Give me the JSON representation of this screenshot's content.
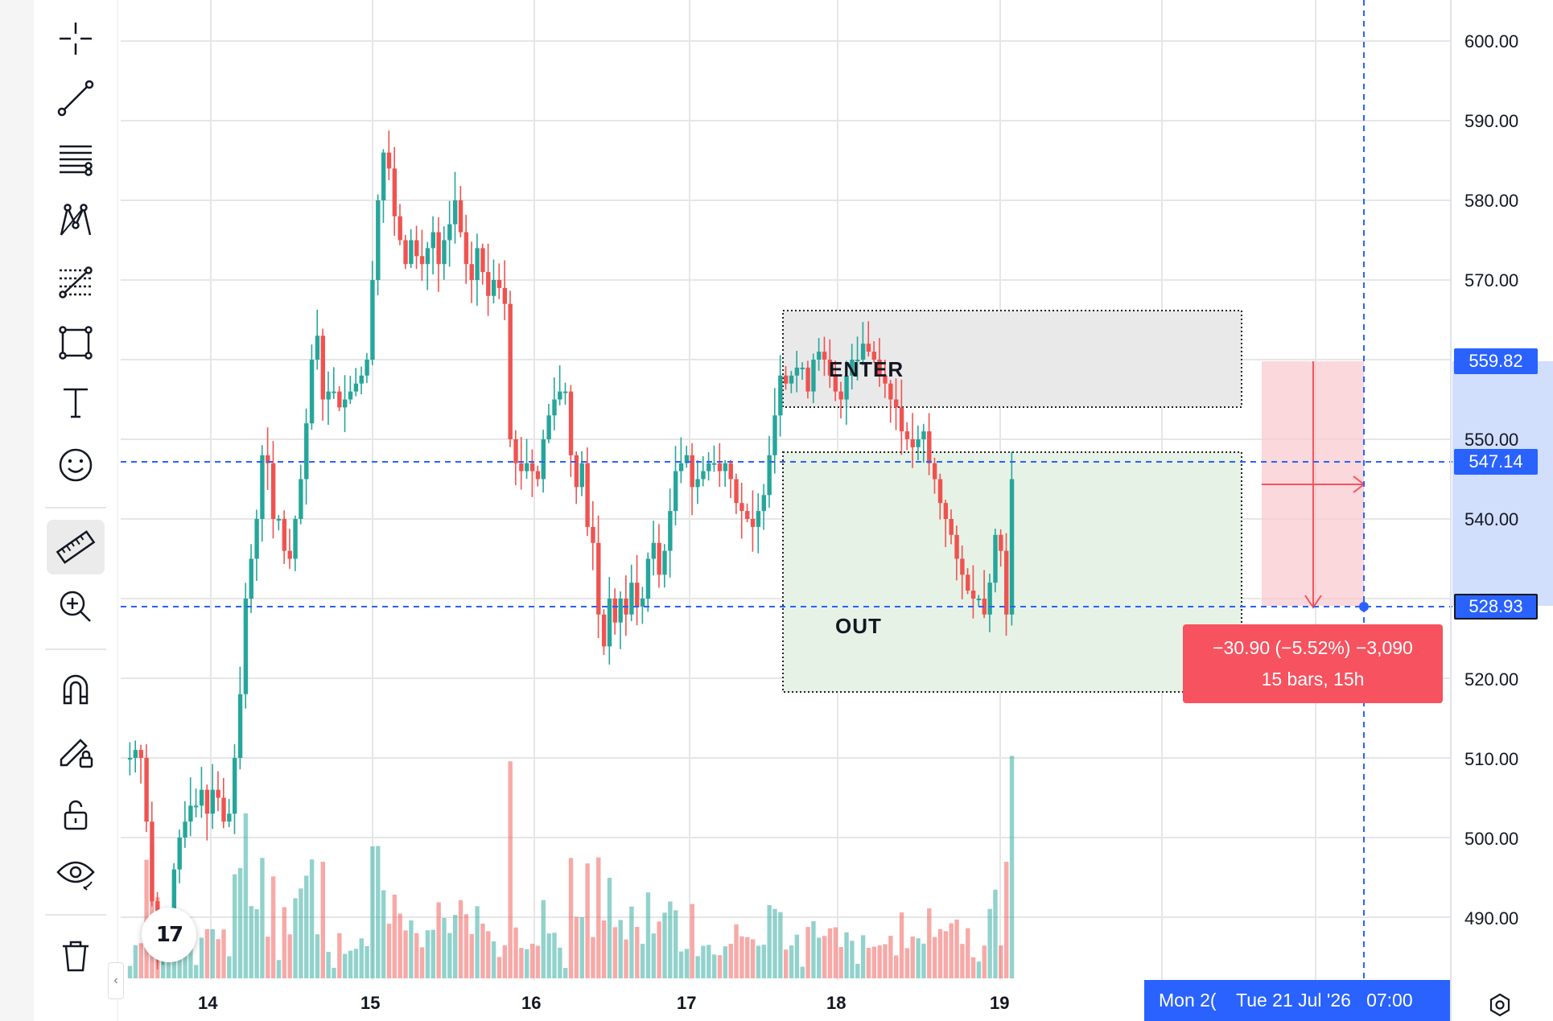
{
  "toolbar": {
    "tools": [
      {
        "name": "crosshair-icon"
      },
      {
        "name": "trend-line-icon"
      },
      {
        "name": "horizontal-lines-icon"
      },
      {
        "name": "pattern-icon"
      },
      {
        "name": "fib-retracement-icon"
      },
      {
        "name": "rectangle-icon"
      },
      {
        "name": "text-icon"
      },
      {
        "name": "emoji-icon"
      },
      {
        "name": "ruler-icon",
        "active": true
      },
      {
        "name": "zoom-in-icon"
      },
      {
        "name": "magnet-icon"
      },
      {
        "name": "pencil-lock-icon"
      },
      {
        "name": "lock-icon"
      },
      {
        "name": "eye-icon"
      },
      {
        "name": "trash-icon"
      }
    ],
    "collapse_label": "‹"
  },
  "price_axis": {
    "ticks": [
      "600.00",
      "590.00",
      "580.00",
      "570.00",
      "560.00",
      "550.00",
      "540.00",
      "530.00",
      "520.00",
      "510.00",
      "500.00",
      "490.00"
    ],
    "tags": {
      "upper": "559.82",
      "crosshair": "547.14",
      "measure_end": "528.93"
    }
  },
  "time_axis": {
    "ticks": [
      "14",
      "15",
      "16",
      "17",
      "18",
      "19"
    ],
    "cursor_label_partial": "Mon 2(",
    "cursor_label": "Tue 21 Jul '26   07:00"
  },
  "annotations": {
    "enter_label": "ENTER",
    "out_label": "OUT"
  },
  "measure": {
    "line1": "−30.90 (−5.52%) −3,090",
    "line2": "15 bars, 15h"
  },
  "logo_text": "17",
  "colors": {
    "up": "#26a69a",
    "down": "#ef5350",
    "crosshair": "#2962ff",
    "measure": "#f7525f",
    "enter_zone": "#e9e9ea",
    "out_zone": "#e6f2e6"
  },
  "chart_data": {
    "type": "candlestick",
    "ylim": [
      483,
      604
    ],
    "x_ticks": [
      "14",
      "15",
      "16",
      "17",
      "18",
      "19"
    ],
    "crosshair_price": 547.14,
    "measure_from": 559.82,
    "measure_to": 528.93,
    "enter_zone": [
      554,
      566
    ],
    "out_zone": [
      518,
      548
    ]
  }
}
